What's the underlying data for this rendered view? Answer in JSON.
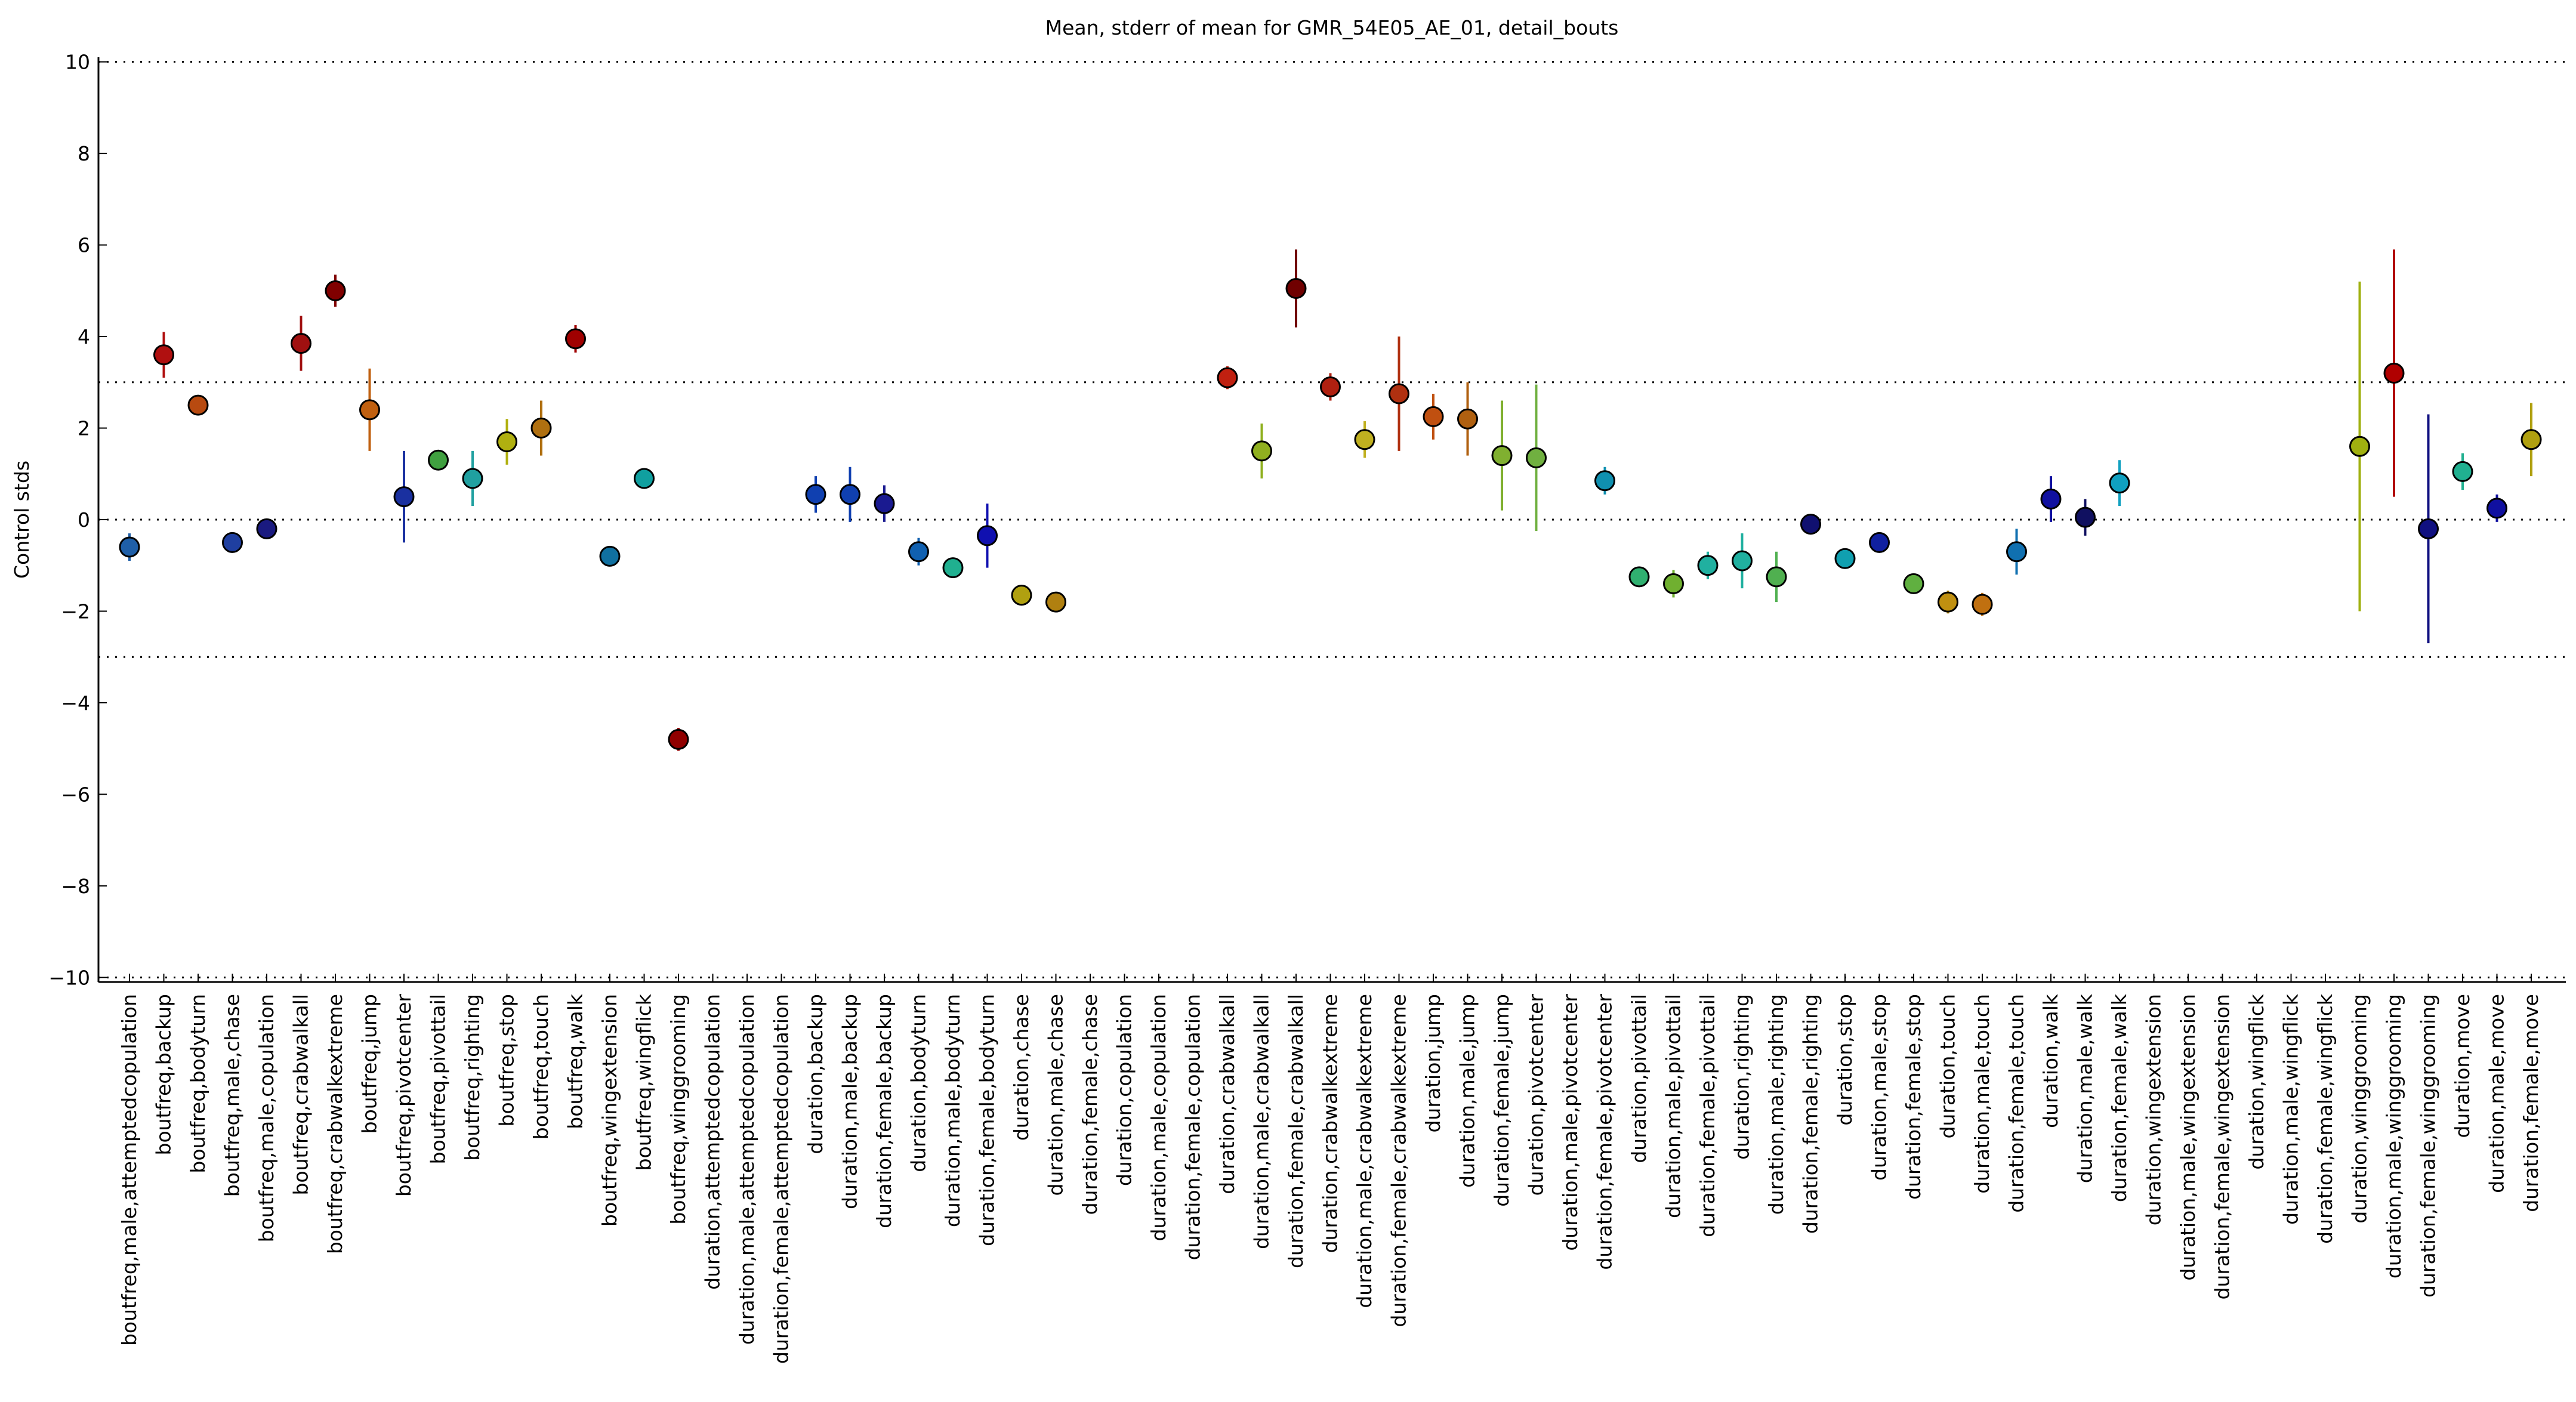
{
  "chart_data": {
    "type": "errorbar",
    "title": "Mean, stderr of mean for GMR_54E05_AE_01, detail_bouts",
    "ylabel": "Control stds",
    "categories": [
      "boutfreq,male,attemptedcopulation",
      "boutfreq,backup",
      "boutfreq,bodyturn",
      "boutfreq,male,chase",
      "boutfreq,male,copulation",
      "boutfreq,crabwalkall",
      "boutfreq,crabwalkextreme",
      "boutfreq,jump",
      "boutfreq,pivotcenter",
      "boutfreq,pivottail",
      "boutfreq,righting",
      "boutfreq,stop",
      "boutfreq,touch",
      "boutfreq,walk",
      "boutfreq,wingextension",
      "boutfreq,wingflick",
      "boutfreq,winggrooming",
      "duration,attemptedcopulation",
      "duration,male,attemptedcopulation",
      "duration,female,attemptedcopulation",
      "duration,backup",
      "duration,male,backup",
      "duration,female,backup",
      "duration,bodyturn",
      "duration,male,bodyturn",
      "duration,female,bodyturn",
      "duration,chase",
      "duration,male,chase",
      "duration,female,chase",
      "duration,copulation",
      "duration,male,copulation",
      "duration,female,copulation",
      "duration,crabwalkall",
      "duration,male,crabwalkall",
      "duration,female,crabwalkall",
      "duration,crabwalkextreme",
      "duration,male,crabwalkextreme",
      "duration,female,crabwalkextreme",
      "duration,jump",
      "duration,male,jump",
      "duration,female,jump",
      "duration,pivotcenter",
      "duration,male,pivotcenter",
      "duration,female,pivotcenter",
      "duration,pivottail",
      "duration,male,pivottail",
      "duration,female,pivottail",
      "duration,righting",
      "duration,male,righting",
      "duration,female,righting",
      "duration,stop",
      "duration,male,stop",
      "duration,female,stop",
      "duration,touch",
      "duration,male,touch",
      "duration,female,touch",
      "duration,walk",
      "duration,male,walk",
      "duration,female,walk",
      "duration,wingextension",
      "duration,male,wingextension",
      "duration,female,wingextension",
      "duration,wingflick",
      "duration,male,wingflick",
      "duration,female,wingflick",
      "duration,winggrooming",
      "duration,male,winggrooming",
      "duration,female,winggrooming",
      "duration,move",
      "duration,male,move",
      "duration,female,move"
    ],
    "values": [
      -0.6,
      3.6,
      2.5,
      -0.5,
      -0.2,
      3.85,
      5.0,
      2.4,
      0.5,
      1.3,
      0.9,
      1.7,
      2.0,
      3.95,
      -0.8,
      0.9,
      -4.8,
      null,
      null,
      null,
      0.55,
      0.55,
      0.35,
      -0.7,
      -1.05,
      -0.35,
      -1.65,
      -1.8,
      null,
      null,
      null,
      null,
      3.1,
      1.5,
      5.05,
      2.9,
      1.75,
      2.75,
      2.25,
      2.2,
      1.4,
      1.35,
      null,
      0.85,
      -1.25,
      -1.4,
      -1.0,
      -0.9,
      -1.25,
      -0.1,
      -0.85,
      -0.5,
      -1.4,
      -1.8,
      -1.85,
      -0.7,
      0.45,
      0.05,
      0.8,
      null,
      null,
      null,
      null,
      null,
      null,
      1.6,
      3.2,
      -0.2,
      1.05,
      0.25,
      1.75
    ],
    "errors": [
      0.3,
      0.5,
      0.2,
      0.1,
      0.1,
      0.6,
      0.35,
      0.9,
      1.0,
      0.2,
      0.6,
      0.5,
      0.6,
      0.3,
      0.1,
      0.15,
      0.25,
      null,
      null,
      null,
      0.4,
      0.6,
      0.4,
      0.3,
      0.1,
      0.7,
      0.1,
      0.15,
      null,
      null,
      null,
      null,
      0.25,
      0.6,
      0.85,
      0.3,
      0.4,
      1.25,
      0.5,
      0.8,
      1.2,
      1.6,
      null,
      0.3,
      0.1,
      0.3,
      0.3,
      0.6,
      0.55,
      0.2,
      0.1,
      0.1,
      0.1,
      0.25,
      0.25,
      0.5,
      0.5,
      0.4,
      0.5,
      null,
      null,
      null,
      null,
      null,
      null,
      3.6,
      2.7,
      2.5,
      0.4,
      0.3,
      0.8
    ],
    "colors": [
      "#1f5fa8",
      "#b01010",
      "#b84a10",
      "#1f3fa0",
      "#1a1a80",
      "#a01010",
      "#800000",
      "#c06010",
      "#1a30a0",
      "#40a040",
      "#20a0a0",
      "#b0b010",
      "#b07010",
      "#a00000",
      "#1070a0",
      "#10a0a0",
      "#900000",
      "#999999",
      "#999999",
      "#999999",
      "#1040b0",
      "#1040b0",
      "#1a1a90",
      "#1060b0",
      "#20b090",
      "#1010b0",
      "#b0a010",
      "#b08010",
      "#999999",
      "#999999",
      "#999999",
      "#999999",
      "#c02010",
      "#90b020",
      "#700000",
      "#b02010",
      "#c0b020",
      "#b03010",
      "#c05010",
      "#b06010",
      "#80b030",
      "#70b040",
      "#999999",
      "#1090b0",
      "#30b070",
      "#70b030",
      "#20b0a0",
      "#20b0a0",
      "#50b050",
      "#101070",
      "#10a0b0",
      "#1020a0",
      "#60b040",
      "#c09010",
      "#c07010",
      "#1070b0",
      "#1010a0",
      "#101060",
      "#10a0c0",
      "#999999",
      "#999999",
      "#999999",
      "#999999",
      "#999999",
      "#999999",
      "#a0b010",
      "#b00000",
      "#101080",
      "#20b090",
      "#1010a0",
      "#b0a010"
    ],
    "ylim": [
      -10.1,
      10.1
    ],
    "yticks": [
      {
        "value": -10,
        "label": "−10"
      },
      {
        "value": -8,
        "label": "−8"
      },
      {
        "value": -6,
        "label": "−6"
      },
      {
        "value": -4,
        "label": "−4"
      },
      {
        "value": -2,
        "label": "−2"
      },
      0,
      2,
      4,
      6,
      8,
      10
    ],
    "reference_lines": [
      -10,
      -3,
      0,
      3,
      10
    ]
  }
}
